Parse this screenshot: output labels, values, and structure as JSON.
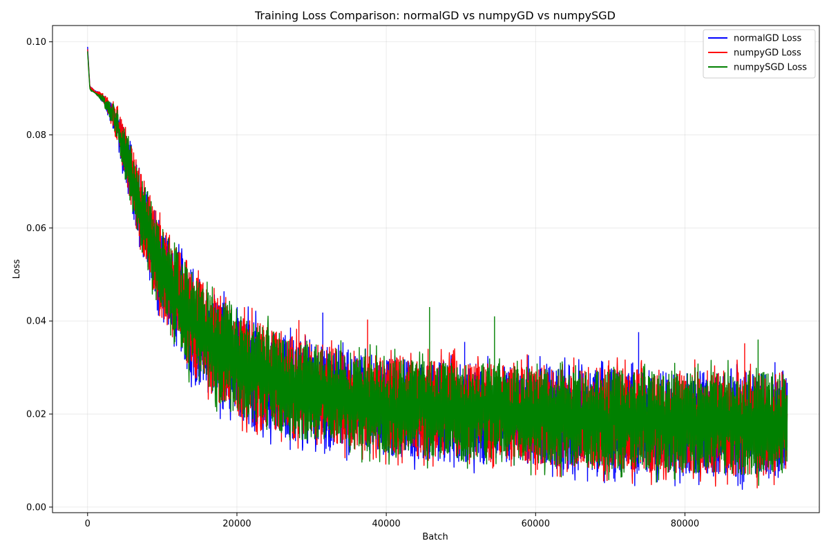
{
  "chart_data": {
    "type": "line",
    "title": "Training Loss Comparison: normalGD vs numpyGD vs numpySGD",
    "xlabel": "Batch",
    "ylabel": "Loss",
    "xlim": [
      -4700,
      98000
    ],
    "ylim": [
      -0.0012,
      0.1035
    ],
    "xticks": [
      0,
      20000,
      40000,
      60000,
      80000
    ],
    "xtick_labels": [
      "0",
      "20000",
      "40000",
      "60000",
      "80000"
    ],
    "yticks": [
      0.0,
      0.02,
      0.04,
      0.06,
      0.08,
      0.1
    ],
    "ytick_labels": [
      "0.00",
      "0.02",
      "0.04",
      "0.06",
      "0.08",
      "0.10"
    ],
    "grid": true,
    "legend_position": "upper right",
    "envelope_x": [
      0,
      300,
      1000,
      2000,
      3000,
      4000,
      5000,
      6000,
      7000,
      8000,
      9000,
      10000,
      12000,
      14000,
      16000,
      18000,
      20000,
      22000,
      25000,
      30000,
      35000,
      40000,
      50000,
      60000,
      70000,
      80000,
      93700
    ],
    "series": [
      {
        "name": "normalGD Loss",
        "color": "#0000ff",
        "upper": [
          0.099,
          0.0905,
          0.0895,
          0.089,
          0.0875,
          0.085,
          0.081,
          0.0765,
          0.072,
          0.068,
          0.064,
          0.06,
          0.055,
          0.051,
          0.047,
          0.044,
          0.0415,
          0.04,
          0.038,
          0.035,
          0.0335,
          0.032,
          0.031,
          0.03,
          0.0295,
          0.029,
          0.0285
        ],
        "lower": [
          0.098,
          0.09,
          0.089,
          0.087,
          0.0835,
          0.078,
          0.07,
          0.063,
          0.056,
          0.05,
          0.0445,
          0.04,
          0.033,
          0.028,
          0.0245,
          0.021,
          0.019,
          0.0175,
          0.0155,
          0.0135,
          0.012,
          0.011,
          0.0095,
          0.0085,
          0.0075,
          0.0065,
          0.006
        ]
      },
      {
        "name": "numpyGD Loss",
        "color": "#ff0000",
        "upper": [
          0.0985,
          0.0905,
          0.0895,
          0.089,
          0.0875,
          0.0855,
          0.0815,
          0.077,
          0.0725,
          0.0685,
          0.0645,
          0.0605,
          0.0555,
          0.0515,
          0.0475,
          0.0445,
          0.042,
          0.0405,
          0.0385,
          0.0355,
          0.034,
          0.0325,
          0.0315,
          0.0305,
          0.03,
          0.0295,
          0.029
        ],
        "lower": [
          0.0975,
          0.09,
          0.089,
          0.087,
          0.0835,
          0.0785,
          0.0705,
          0.0635,
          0.0565,
          0.0505,
          0.045,
          0.0405,
          0.0335,
          0.0285,
          0.025,
          0.0215,
          0.0195,
          0.018,
          0.016,
          0.014,
          0.0125,
          0.0115,
          0.01,
          0.009,
          0.008,
          0.007,
          0.0065
        ]
      },
      {
        "name": "numpySGD Loss",
        "color": "#008000",
        "upper": [
          0.098,
          0.09,
          0.089,
          0.0885,
          0.087,
          0.085,
          0.081,
          0.0765,
          0.072,
          0.068,
          0.064,
          0.06,
          0.055,
          0.051,
          0.047,
          0.044,
          0.0415,
          0.04,
          0.038,
          0.035,
          0.0335,
          0.032,
          0.031,
          0.03,
          0.0295,
          0.029,
          0.029
        ],
        "lower": [
          0.0975,
          0.0895,
          0.089,
          0.087,
          0.0835,
          0.0785,
          0.0705,
          0.0635,
          0.0565,
          0.0505,
          0.045,
          0.0405,
          0.0335,
          0.0285,
          0.025,
          0.0215,
          0.0195,
          0.018,
          0.016,
          0.014,
          0.0125,
          0.0115,
          0.0102,
          0.0092,
          0.0082,
          0.0072,
          0.0068
        ]
      }
    ],
    "spikes": [
      {
        "series": "numpySGD Loss",
        "x": 45800,
        "y": 0.043
      },
      {
        "series": "numpySGD Loss",
        "x": 54500,
        "y": 0.041
      },
      {
        "series": "normalGD Loss",
        "x": 31500,
        "y": 0.0418
      },
      {
        "series": "normalGD Loss",
        "x": 73800,
        "y": 0.0376
      },
      {
        "series": "numpyGD Loss",
        "x": 37500,
        "y": 0.0403
      },
      {
        "series": "numpyGD Loss",
        "x": 28300,
        "y": 0.0402
      },
      {
        "series": "numpySGD Loss",
        "x": 89800,
        "y": 0.036
      },
      {
        "series": "normalGD Loss",
        "x": 50500,
        "y": 0.0355
      },
      {
        "series": "numpyGD Loss",
        "x": 88000,
        "y": 0.0352
      }
    ]
  }
}
